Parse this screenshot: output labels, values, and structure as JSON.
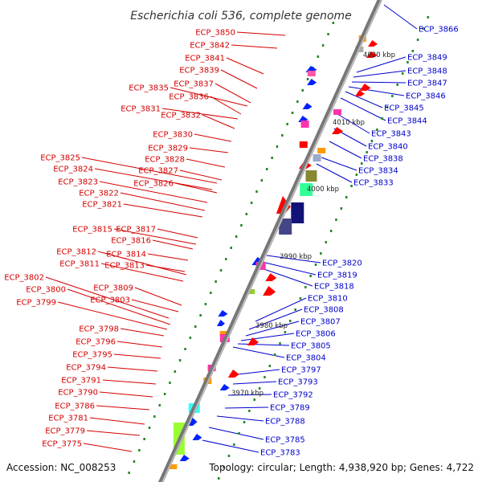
{
  "title": "Escherichia coli 536, complete genome",
  "accession": "Accession: NC_008253",
  "summary": "Topology: circular; Length: 4,938,920 bp; Genes: 4,722",
  "colors": {
    "left_label": "#d40000",
    "right_label": "#0000cc",
    "backbone": "#888888",
    "strand_left": "#ff0000",
    "strand_right": "#0022ff",
    "tick": "#228822",
    "pink": "#ff33aa"
  },
  "scale_marks": [
    {
      "label": "4020 kbp"
    },
    {
      "label": "4010 kbp"
    },
    {
      "label": "4000 kbp"
    },
    {
      "label": "3990 kbp"
    },
    {
      "label": "3980 kbp"
    },
    {
      "label": "3970 kbp"
    }
  ],
  "left_labels": [
    "ECP_3850",
    "ECP_3842",
    "ECP_3841",
    "ECP_3839",
    "ECP_3837",
    "ECP_3835",
    "ECP_3836",
    "ECP_3831",
    "ECP_3832",
    "ECP_3830",
    "ECP_3829",
    "ECP_3828",
    "ECP_3825",
    "ECP_3827",
    "ECP_3824",
    "ECP_3826",
    "ECP_3823",
    "ECP_3822",
    "ECP_3821",
    "ECP_3815",
    "ECP_3817",
    "ECP_3816",
    "ECP_3812",
    "ECP_3814",
    "ECP_3811",
    "ECP_3813",
    "ECP_3802",
    "ECP_3800",
    "ECP_3809",
    "ECP_3799",
    "ECP_3803",
    "ECP_3798",
    "ECP_3796",
    "ECP_3795",
    "ECP_3794",
    "ECP_3791",
    "ECP_3790",
    "ECP_3786",
    "ECP_3781",
    "ECP_3779",
    "ECP_3775"
  ],
  "right_labels": [
    "ECP_3866",
    "ECP_3849",
    "ECP_3848",
    "ECP_3847",
    "ECP_3846",
    "ECP_3845",
    "ECP_3844",
    "ECP_3843",
    "ECP_3840",
    "ECP_3838",
    "ECP_3834",
    "ECP_3833",
    "ECP_3820",
    "ECP_3819",
    "ECP_3818",
    "ECP_3810",
    "ECP_3808",
    "ECP_3807",
    "ECP_3806",
    "ECP_3805",
    "ECP_3804",
    "ECP_3797",
    "ECP_3793",
    "ECP_3792",
    "ECP_3789",
    "ECP_3788",
    "ECP_3785",
    "ECP_3783"
  ]
}
